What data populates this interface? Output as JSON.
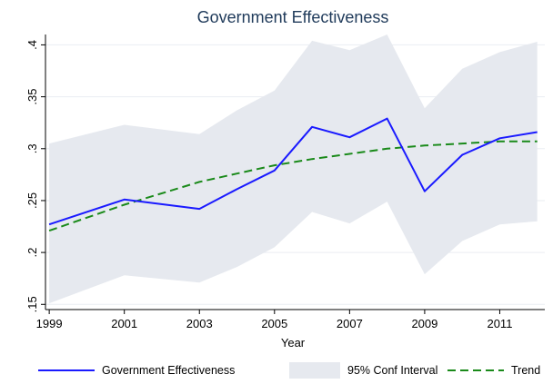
{
  "chart_data": {
    "type": "line",
    "title": "Government Effectiveness",
    "xlabel": "Year",
    "ylabel": "",
    "xlim": [
      1998.9,
      2012.2
    ],
    "ylim": [
      0.145,
      0.41
    ],
    "x_ticks": [
      1999,
      2001,
      2003,
      2005,
      2007,
      2009,
      2011
    ],
    "x_tick_labels": [
      "1999",
      "2001",
      "2003",
      "2005",
      "2007",
      "2009",
      "2011"
    ],
    "y_ticks": [
      0.15,
      0.2,
      0.25,
      0.3,
      0.35,
      0.4
    ],
    "y_tick_labels": [
      ".15",
      ".2",
      ".25",
      ".3",
      ".35",
      ".4"
    ],
    "grid": "horizontal",
    "legend_position": "bottom",
    "x": [
      1999,
      2001,
      2003,
      2004,
      2005,
      2006,
      2007,
      2008,
      2009,
      2010,
      2011,
      2012
    ],
    "series": [
      {
        "name": "Government Effectiveness",
        "kind": "line",
        "color": "#1a1aff",
        "values": [
          0.227,
          0.251,
          0.242,
          0.261,
          0.279,
          0.321,
          0.311,
          0.329,
          0.259,
          0.294,
          0.31,
          0.316
        ]
      },
      {
        "name": "95% Conf Interval",
        "kind": "band",
        "color": "#e6e9ef",
        "lower": [
          0.151,
          0.178,
          0.171,
          0.186,
          0.205,
          0.239,
          0.228,
          0.249,
          0.179,
          0.211,
          0.227,
          0.23
        ],
        "upper": [
          0.305,
          0.323,
          0.314,
          0.337,
          0.356,
          0.404,
          0.395,
          0.41,
          0.339,
          0.377,
          0.393,
          0.403
        ]
      },
      {
        "name": "Trend",
        "kind": "dashed-line",
        "color": "#1a8a1a",
        "values": [
          0.221,
          0.246,
          0.268,
          0.276,
          0.284,
          0.29,
          0.295,
          0.3,
          0.303,
          0.305,
          0.307,
          0.307
        ]
      }
    ]
  }
}
